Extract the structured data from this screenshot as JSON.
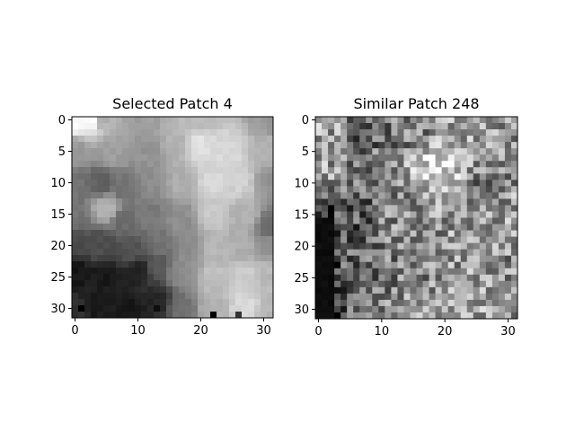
{
  "chart_data": [
    {
      "type": "heatmap",
      "title": "Selected Patch 4",
      "xlabel": "",
      "ylabel": "",
      "colormap": "gray",
      "xlim": [
        -0.5,
        31.5
      ],
      "ylim": [
        31.5,
        -0.5
      ],
      "xticks": [
        0,
        10,
        20,
        30
      ],
      "yticks": [
        0,
        5,
        10,
        15,
        20,
        25,
        30
      ],
      "size": 32,
      "keypoints": [
        {
          "x": 0,
          "y": 0,
          "v": 1.0
        },
        {
          "x": 3,
          "y": 0,
          "v": 1.0
        },
        {
          "x": 4,
          "y": 0,
          "v": 0.67
        },
        {
          "x": 10,
          "y": 0,
          "v": 0.62
        },
        {
          "x": 20,
          "y": 0,
          "v": 0.72
        },
        {
          "x": 31,
          "y": 0,
          "v": 0.6
        },
        {
          "x": 0,
          "y": 5,
          "v": 0.6
        },
        {
          "x": 6,
          "y": 5,
          "v": 0.62
        },
        {
          "x": 12,
          "y": 5,
          "v": 0.58
        },
        {
          "x": 16,
          "y": 4,
          "v": 0.7
        },
        {
          "x": 20,
          "y": 4,
          "v": 0.88
        },
        {
          "x": 24,
          "y": 5,
          "v": 0.85
        },
        {
          "x": 31,
          "y": 5,
          "v": 0.7
        },
        {
          "x": 0,
          "y": 10,
          "v": 0.45
        },
        {
          "x": 4,
          "y": 10,
          "v": 0.38
        },
        {
          "x": 8,
          "y": 11,
          "v": 0.45
        },
        {
          "x": 12,
          "y": 10,
          "v": 0.55
        },
        {
          "x": 17,
          "y": 10,
          "v": 0.68
        },
        {
          "x": 22,
          "y": 10,
          "v": 0.85
        },
        {
          "x": 26,
          "y": 10,
          "v": 0.82
        },
        {
          "x": 31,
          "y": 10,
          "v": 0.58
        },
        {
          "x": 0,
          "y": 15,
          "v": 0.45
        },
        {
          "x": 5,
          "y": 14,
          "v": 0.7
        },
        {
          "x": 8,
          "y": 16,
          "v": 0.42
        },
        {
          "x": 12,
          "y": 15,
          "v": 0.48
        },
        {
          "x": 17,
          "y": 16,
          "v": 0.56
        },
        {
          "x": 22,
          "y": 15,
          "v": 0.78
        },
        {
          "x": 27,
          "y": 15,
          "v": 0.7
        },
        {
          "x": 31,
          "y": 17,
          "v": 0.4
        },
        {
          "x": 0,
          "y": 20,
          "v": 0.28
        },
        {
          "x": 4,
          "y": 20,
          "v": 0.3
        },
        {
          "x": 9,
          "y": 21,
          "v": 0.32
        },
        {
          "x": 14,
          "y": 20,
          "v": 0.45
        },
        {
          "x": 18,
          "y": 20,
          "v": 0.55
        },
        {
          "x": 22,
          "y": 20,
          "v": 0.72
        },
        {
          "x": 27,
          "y": 20,
          "v": 0.68
        },
        {
          "x": 31,
          "y": 20,
          "v": 0.55
        },
        {
          "x": 0,
          "y": 24,
          "v": 0.08
        },
        {
          "x": 5,
          "y": 25,
          "v": 0.1
        },
        {
          "x": 10,
          "y": 24,
          "v": 0.12
        },
        {
          "x": 13,
          "y": 23,
          "v": 0.35
        },
        {
          "x": 17,
          "y": 24,
          "v": 0.55
        },
        {
          "x": 22,
          "y": 25,
          "v": 0.75
        },
        {
          "x": 27,
          "y": 25,
          "v": 0.8
        },
        {
          "x": 31,
          "y": 24,
          "v": 0.72
        },
        {
          "x": 0,
          "y": 31,
          "v": 0.2
        },
        {
          "x": 4,
          "y": 30,
          "v": 0.1
        },
        {
          "x": 9,
          "y": 30,
          "v": 0.1
        },
        {
          "x": 13,
          "y": 29,
          "v": 0.15
        },
        {
          "x": 17,
          "y": 30,
          "v": 0.45
        },
        {
          "x": 22,
          "y": 30,
          "v": 0.7
        },
        {
          "x": 27,
          "y": 30,
          "v": 0.85
        },
        {
          "x": 31,
          "y": 31,
          "v": 0.72
        }
      ],
      "darkspots": [
        {
          "x": 1,
          "y": 30,
          "v": 0.0
        },
        {
          "x": 13,
          "y": 30,
          "v": 0.05
        },
        {
          "x": 22,
          "y": 31,
          "v": 0.0
        },
        {
          "x": 26,
          "y": 31,
          "v": 0.2
        }
      ]
    },
    {
      "type": "heatmap",
      "title": "Similar Patch 248",
      "xlabel": "",
      "ylabel": "",
      "colormap": "gray",
      "xlim": [
        -0.5,
        31.5
      ],
      "ylim": [
        31.5,
        -0.5
      ],
      "xticks": [
        0,
        10,
        20,
        30
      ],
      "yticks": [
        0,
        5,
        10,
        15,
        20,
        25,
        30
      ],
      "size": 32,
      "keypoints": [
        {
          "x": 0,
          "y": 0,
          "v": 0.65
        },
        {
          "x": 8,
          "y": 2,
          "v": 0.4
        },
        {
          "x": 16,
          "y": 2,
          "v": 0.5
        },
        {
          "x": 24,
          "y": 2,
          "v": 0.62
        },
        {
          "x": 31,
          "y": 0,
          "v": 0.6
        },
        {
          "x": 0,
          "y": 8,
          "v": 0.62
        },
        {
          "x": 8,
          "y": 8,
          "v": 0.5
        },
        {
          "x": 19,
          "y": 7,
          "v": 0.85
        },
        {
          "x": 27,
          "y": 10,
          "v": 0.5
        },
        {
          "x": 0,
          "y": 16,
          "v": 0.15
        },
        {
          "x": 5,
          "y": 15,
          "v": 0.35
        },
        {
          "x": 14,
          "y": 16,
          "v": 0.55
        },
        {
          "x": 24,
          "y": 16,
          "v": 0.6
        },
        {
          "x": 31,
          "y": 16,
          "v": 0.65
        },
        {
          "x": 0,
          "y": 24,
          "v": 0.05
        },
        {
          "x": 6,
          "y": 24,
          "v": 0.4
        },
        {
          "x": 14,
          "y": 23,
          "v": 0.5
        },
        {
          "x": 22,
          "y": 24,
          "v": 0.6
        },
        {
          "x": 31,
          "y": 24,
          "v": 0.55
        },
        {
          "x": 0,
          "y": 31,
          "v": 0.1
        },
        {
          "x": 8,
          "y": 30,
          "v": 0.5
        },
        {
          "x": 16,
          "y": 30,
          "v": 0.6
        },
        {
          "x": 24,
          "y": 30,
          "v": 0.65
        },
        {
          "x": 31,
          "y": 31,
          "v": 0.55
        }
      ],
      "noise": 0.28,
      "darkregion": {
        "x_max": 2,
        "y_min": 16,
        "v": 0.03
      }
    }
  ]
}
